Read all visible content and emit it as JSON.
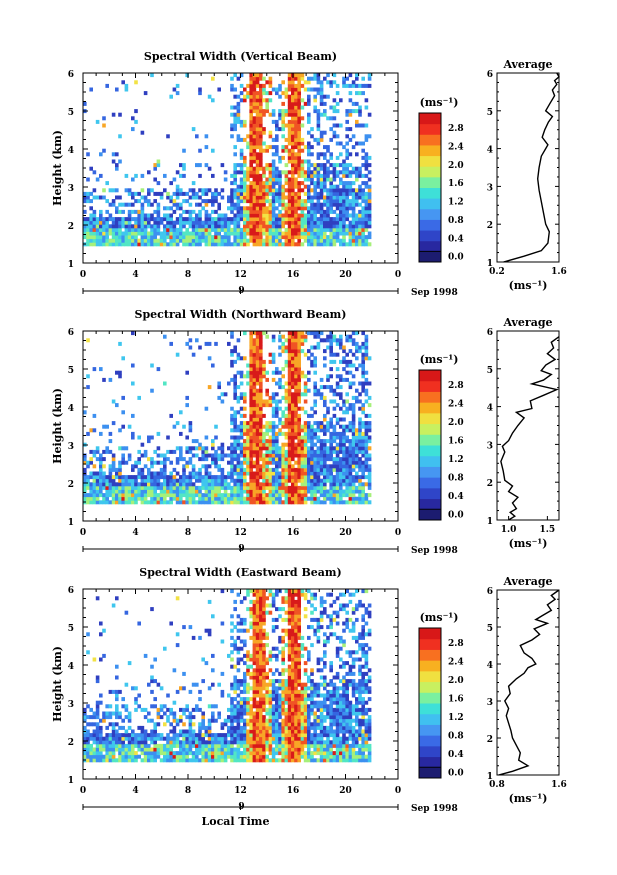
{
  "figure": {
    "xlabel": "Local Time",
    "day_label": "9",
    "date_label": "Sep 1998",
    "colorbar_unit": "(ms⁻¹)",
    "colorbar_ticks": [
      "0.0",
      "0.4",
      "0.8",
      "1.2",
      "1.6",
      "2.0",
      "2.4",
      "2.8"
    ],
    "colorbar_colors": [
      "#1c1c70",
      "#2828a0",
      "#2f45c8",
      "#3a6ae6",
      "#4696f2",
      "#40c0f0",
      "#3ee0d8",
      "#7af0a0",
      "#c8f060",
      "#f0e040",
      "#f8b020",
      "#f87020",
      "#f03020",
      "#d81818"
    ],
    "palette": [
      "#2f3fc0",
      "#3566e0",
      "#3c90f0",
      "#3fc6ee",
      "#52e6c4",
      "#a6f07a",
      "#f2e244",
      "#f8a626",
      "#f05424",
      "#d81a1a"
    ],
    "avg_title": "Average",
    "avg_xlabel": "(ms⁻¹)"
  },
  "chart_data": [
    {
      "type": "heatmap",
      "title": "Spectral Width (Vertical Beam)",
      "xlabel": "Local Time",
      "ylabel": "Height (km)",
      "x_ticks": [
        "0",
        "4",
        "8",
        "12",
        "16",
        "20",
        "0"
      ],
      "y_ticks": [
        "1",
        "2",
        "3",
        "4",
        "5",
        "6"
      ],
      "xlim": [
        0,
        24
      ],
      "ylim": [
        1,
        6
      ],
      "colorbar_range": [
        0.0,
        3.0
      ],
      "strong_periods_hours": [
        [
          12.6,
          13.6
        ],
        [
          15.6,
          16.4
        ]
      ],
      "data_extent_hours": [
        0,
        21.8
      ],
      "average_profile": {
        "title": "Average",
        "xticks": [
          "0.2",
          "1.6"
        ],
        "xlim": [
          0.2,
          1.6
        ],
        "xlabel": "(ms⁻¹)",
        "points": [
          [
            0.35,
            1.0
          ],
          [
            0.8,
            1.15
          ],
          [
            1.2,
            1.3
          ],
          [
            1.35,
            1.5
          ],
          [
            1.38,
            1.8
          ],
          [
            1.3,
            2.0
          ],
          [
            1.25,
            2.3
          ],
          [
            1.2,
            2.6
          ],
          [
            1.15,
            2.9
          ],
          [
            1.12,
            3.2
          ],
          [
            1.15,
            3.5
          ],
          [
            1.2,
            3.8
          ],
          [
            1.3,
            4.0
          ],
          [
            1.35,
            4.1
          ],
          [
            1.22,
            4.3
          ],
          [
            1.28,
            4.5
          ],
          [
            1.36,
            4.7
          ],
          [
            1.45,
            4.85
          ],
          [
            1.3,
            5.0
          ],
          [
            1.4,
            5.2
          ],
          [
            1.5,
            5.4
          ],
          [
            1.45,
            5.55
          ],
          [
            1.55,
            5.7
          ],
          [
            1.5,
            5.8
          ],
          [
            1.6,
            5.9
          ],
          [
            1.55,
            6.0
          ]
        ]
      }
    },
    {
      "type": "heatmap",
      "title": "Spectral Width (Northward Beam)",
      "xlabel": "Local Time",
      "ylabel": "Height (km)",
      "x_ticks": [
        "0",
        "4",
        "8",
        "12",
        "16",
        "20",
        "0"
      ],
      "y_ticks": [
        "1",
        "2",
        "3",
        "4",
        "5",
        "6"
      ],
      "xlim": [
        0,
        24
      ],
      "ylim": [
        1,
        6
      ],
      "colorbar_range": [
        0.0,
        3.0
      ],
      "strong_periods_hours": [
        [
          12.6,
          13.6
        ],
        [
          15.6,
          16.4
        ]
      ],
      "data_extent_hours": [
        0,
        21.8
      ],
      "average_profile": {
        "title": "Average",
        "xticks": [
          "1.0",
          "1.5"
        ],
        "xlim": [
          0.85,
          1.65
        ],
        "xlabel": "(ms⁻¹)",
        "points": [
          [
            1.0,
            1.0
          ],
          [
            1.08,
            1.1
          ],
          [
            1.02,
            1.2
          ],
          [
            1.1,
            1.3
          ],
          [
            1.05,
            1.45
          ],
          [
            1.12,
            1.6
          ],
          [
            1.0,
            1.75
          ],
          [
            1.05,
            1.9
          ],
          [
            0.95,
            2.05
          ],
          [
            0.93,
            2.3
          ],
          [
            0.9,
            2.55
          ],
          [
            0.95,
            2.8
          ],
          [
            0.92,
            2.95
          ],
          [
            1.0,
            3.1
          ],
          [
            1.05,
            3.3
          ],
          [
            1.12,
            3.5
          ],
          [
            1.2,
            3.7
          ],
          [
            1.1,
            3.85
          ],
          [
            1.3,
            3.95
          ],
          [
            1.28,
            4.15
          ],
          [
            1.45,
            4.3
          ],
          [
            1.62,
            4.45
          ],
          [
            1.3,
            4.6
          ],
          [
            1.45,
            4.7
          ],
          [
            1.55,
            4.85
          ],
          [
            1.42,
            4.95
          ],
          [
            1.48,
            5.1
          ],
          [
            1.6,
            5.25
          ],
          [
            1.5,
            5.4
          ],
          [
            1.58,
            5.55
          ],
          [
            1.55,
            5.7
          ],
          [
            1.65,
            5.85
          ]
        ]
      }
    },
    {
      "type": "heatmap",
      "title": "Spectral Width (Eastward Beam)",
      "xlabel": "Local Time",
      "ylabel": "Height (km)",
      "x_ticks": [
        "0",
        "4",
        "8",
        "12",
        "16",
        "20",
        "0"
      ],
      "y_ticks": [
        "1",
        "2",
        "3",
        "4",
        "5",
        "6"
      ],
      "xlim": [
        0,
        24
      ],
      "ylim": [
        1,
        6
      ],
      "colorbar_range": [
        0.0,
        3.0
      ],
      "strong_periods_hours": [
        [
          12.8,
          13.7
        ],
        [
          15.6,
          16.4
        ]
      ],
      "data_extent_hours": [
        0,
        21.8
      ],
      "average_profile": {
        "title": "Average",
        "xticks": [
          "0.8",
          "1.6"
        ],
        "xlim": [
          0.8,
          1.6
        ],
        "xlabel": "(ms⁻¹)",
        "points": [
          [
            0.82,
            1.0
          ],
          [
            1.0,
            1.1
          ],
          [
            1.2,
            1.25
          ],
          [
            1.08,
            1.4
          ],
          [
            1.1,
            1.6
          ],
          [
            1.05,
            1.8
          ],
          [
            1.0,
            2.0
          ],
          [
            0.98,
            2.2
          ],
          [
            0.95,
            2.4
          ],
          [
            0.92,
            2.6
          ],
          [
            0.95,
            2.8
          ],
          [
            0.9,
            3.0
          ],
          [
            0.97,
            3.2
          ],
          [
            0.95,
            3.4
          ],
          [
            1.05,
            3.6
          ],
          [
            1.15,
            3.75
          ],
          [
            1.2,
            3.9
          ],
          [
            1.3,
            4.0
          ],
          [
            1.25,
            4.15
          ],
          [
            1.15,
            4.3
          ],
          [
            1.1,
            4.5
          ],
          [
            1.25,
            4.65
          ],
          [
            1.35,
            4.8
          ],
          [
            1.28,
            4.95
          ],
          [
            1.45,
            5.1
          ],
          [
            1.3,
            5.2
          ],
          [
            1.38,
            5.3
          ],
          [
            1.5,
            5.45
          ],
          [
            1.45,
            5.6
          ],
          [
            1.55,
            5.75
          ],
          [
            1.5,
            5.85
          ],
          [
            1.6,
            6.0
          ]
        ]
      }
    }
  ]
}
